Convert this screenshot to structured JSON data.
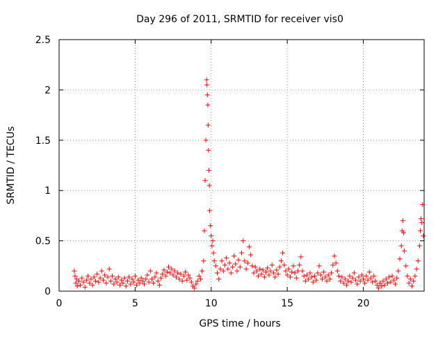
{
  "chart_data": {
    "type": "scatter",
    "title": "Day 296 of 2011, SRMTID for receiver vis0",
    "xlabel": "GPS time / hours",
    "ylabel": "SRMTID / TECUs",
    "xlim": [
      0,
      24
    ],
    "ylim": [
      0,
      2.5
    ],
    "x_ticks": [
      0,
      5,
      10,
      15,
      20
    ],
    "x_tick_labels": [
      "0",
      "5",
      "10",
      "15",
      "20"
    ],
    "y_ticks": [
      0,
      0.5,
      1,
      1.5,
      2,
      2.5
    ],
    "y_tick_labels": [
      "0",
      "0.5",
      "1",
      "1.5",
      "2",
      "2.5"
    ],
    "grid": true,
    "marker": "plus",
    "series": [
      {
        "name": "vis0",
        "color": "#ff0000",
        "points": [
          [
            1.0,
            0.2
          ],
          [
            1.05,
            0.15
          ],
          [
            1.1,
            0.08
          ],
          [
            1.15,
            0.12
          ],
          [
            1.2,
            0.05
          ],
          [
            1.3,
            0.1
          ],
          [
            1.4,
            0.06
          ],
          [
            1.5,
            0.13
          ],
          [
            1.6,
            0.09
          ],
          [
            1.7,
            0.04
          ],
          [
            1.8,
            0.11
          ],
          [
            1.9,
            0.15
          ],
          [
            2.0,
            0.08
          ],
          [
            2.1,
            0.12
          ],
          [
            2.2,
            0.06
          ],
          [
            2.3,
            0.14
          ],
          [
            2.4,
            0.1
          ],
          [
            2.5,
            0.17
          ],
          [
            2.6,
            0.09
          ],
          [
            2.7,
            0.13
          ],
          [
            2.8,
            0.2
          ],
          [
            2.9,
            0.11
          ],
          [
            3.0,
            0.16
          ],
          [
            3.1,
            0.08
          ],
          [
            3.2,
            0.14
          ],
          [
            3.3,
            0.22
          ],
          [
            3.4,
            0.1
          ],
          [
            3.5,
            0.15
          ],
          [
            3.6,
            0.07
          ],
          [
            3.7,
            0.12
          ],
          [
            3.8,
            0.09
          ],
          [
            3.9,
            0.14
          ],
          [
            4.0,
            0.06
          ],
          [
            4.1,
            0.11
          ],
          [
            4.2,
            0.08
          ],
          [
            4.3,
            0.13
          ],
          [
            4.4,
            0.05
          ],
          [
            4.5,
            0.1
          ],
          [
            4.6,
            0.14
          ],
          [
            4.7,
            0.07
          ],
          [
            4.8,
            0.12
          ],
          [
            4.9,
            0.09
          ],
          [
            5.0,
            0.15
          ],
          [
            5.1,
            0.06
          ],
          [
            5.2,
            0.11
          ],
          [
            5.3,
            0.08
          ],
          [
            5.4,
            0.13
          ],
          [
            5.5,
            0.1
          ],
          [
            5.6,
            0.07
          ],
          [
            5.7,
            0.12
          ],
          [
            5.8,
            0.16
          ],
          [
            5.9,
            0.09
          ],
          [
            6.0,
            0.2
          ],
          [
            6.1,
            0.12
          ],
          [
            6.2,
            0.08
          ],
          [
            6.3,
            0.14
          ],
          [
            6.4,
            0.18
          ],
          [
            6.5,
            0.1
          ],
          [
            6.6,
            0.06
          ],
          [
            6.7,
            0.13
          ],
          [
            6.8,
            0.17
          ],
          [
            6.9,
            0.21
          ],
          [
            7.0,
            0.15
          ],
          [
            7.1,
            0.19
          ],
          [
            7.2,
            0.24
          ],
          [
            7.3,
            0.18
          ],
          [
            7.4,
            0.22
          ],
          [
            7.5,
            0.16
          ],
          [
            7.6,
            0.2
          ],
          [
            7.7,
            0.14
          ],
          [
            7.8,
            0.18
          ],
          [
            7.9,
            0.12
          ],
          [
            8.0,
            0.17
          ],
          [
            8.1,
            0.1
          ],
          [
            8.2,
            0.15
          ],
          [
            8.3,
            0.19
          ],
          [
            8.4,
            0.11
          ],
          [
            8.5,
            0.16
          ],
          [
            8.6,
            0.13
          ],
          [
            8.7,
            0.09
          ],
          [
            8.8,
            0.05
          ],
          [
            8.9,
            0.03
          ],
          [
            9.0,
            0.07
          ],
          [
            9.1,
            0.1
          ],
          [
            9.2,
            0.15
          ],
          [
            9.3,
            0.12
          ],
          [
            9.4,
            0.2
          ],
          [
            9.5,
            0.3
          ],
          [
            9.55,
            0.6
          ],
          [
            9.6,
            1.1
          ],
          [
            9.65,
            1.5
          ],
          [
            9.7,
            2.1
          ],
          [
            9.72,
            2.05
          ],
          [
            9.75,
            1.95
          ],
          [
            9.78,
            1.85
          ],
          [
            9.8,
            1.65
          ],
          [
            9.82,
            1.4
          ],
          [
            9.85,
            1.2
          ],
          [
            9.88,
            1.05
          ],
          [
            9.9,
            0.8
          ],
          [
            9.95,
            0.65
          ],
          [
            10.0,
            0.55
          ],
          [
            10.05,
            0.45
          ],
          [
            10.1,
            0.5
          ],
          [
            10.15,
            0.38
          ],
          [
            10.2,
            0.3
          ],
          [
            10.3,
            0.25
          ],
          [
            10.4,
            0.18
          ],
          [
            10.5,
            0.12
          ],
          [
            10.6,
            0.22
          ],
          [
            10.7,
            0.3
          ],
          [
            10.8,
            0.2
          ],
          [
            10.9,
            0.26
          ],
          [
            11.0,
            0.33
          ],
          [
            11.1,
            0.22
          ],
          [
            11.2,
            0.28
          ],
          [
            11.3,
            0.18
          ],
          [
            11.4,
            0.24
          ],
          [
            11.5,
            0.35
          ],
          [
            11.6,
            0.27
          ],
          [
            11.7,
            0.2
          ],
          [
            11.8,
            0.31
          ],
          [
            11.9,
            0.24
          ],
          [
            12.0,
            0.38
          ],
          [
            12.1,
            0.5
          ],
          [
            12.2,
            0.3
          ],
          [
            12.3,
            0.22
          ],
          [
            12.4,
            0.28
          ],
          [
            12.5,
            0.44
          ],
          [
            12.6,
            0.36
          ],
          [
            12.7,
            0.25
          ],
          [
            12.8,
            0.18
          ],
          [
            12.9,
            0.24
          ],
          [
            13.0,
            0.2
          ],
          [
            13.1,
            0.15
          ],
          [
            13.2,
            0.22
          ],
          [
            13.3,
            0.17
          ],
          [
            13.4,
            0.21
          ],
          [
            13.5,
            0.14
          ],
          [
            13.6,
            0.19
          ],
          [
            13.7,
            0.23
          ],
          [
            13.8,
            0.16
          ],
          [
            13.9,
            0.2
          ],
          [
            14.0,
            0.26
          ],
          [
            14.1,
            0.18
          ],
          [
            14.2,
            0.14
          ],
          [
            14.3,
            0.21
          ],
          [
            14.4,
            0.17
          ],
          [
            14.5,
            0.24
          ],
          [
            14.6,
            0.3
          ],
          [
            14.7,
            0.38
          ],
          [
            14.8,
            0.26
          ],
          [
            14.9,
            0.2
          ],
          [
            15.0,
            0.16
          ],
          [
            15.1,
            0.22
          ],
          [
            15.2,
            0.14
          ],
          [
            15.3,
            0.19
          ],
          [
            15.4,
            0.25
          ],
          [
            15.5,
            0.18
          ],
          [
            15.6,
            0.13
          ],
          [
            15.7,
            0.2
          ],
          [
            15.8,
            0.26
          ],
          [
            15.9,
            0.34
          ],
          [
            16.0,
            0.2
          ],
          [
            16.1,
            0.15
          ],
          [
            16.2,
            0.1
          ],
          [
            16.3,
            0.16
          ],
          [
            16.4,
            0.12
          ],
          [
            16.5,
            0.18
          ],
          [
            16.6,
            0.14
          ],
          [
            16.7,
            0.09
          ],
          [
            16.8,
            0.15
          ],
          [
            16.9,
            0.11
          ],
          [
            17.0,
            0.18
          ],
          [
            17.1,
            0.25
          ],
          [
            17.2,
            0.16
          ],
          [
            17.3,
            0.12
          ],
          [
            17.4,
            0.19
          ],
          [
            17.5,
            0.14
          ],
          [
            17.6,
            0.1
          ],
          [
            17.7,
            0.16
          ],
          [
            17.8,
            0.12
          ],
          [
            17.9,
            0.18
          ],
          [
            18.0,
            0.26
          ],
          [
            18.1,
            0.35
          ],
          [
            18.2,
            0.28
          ],
          [
            18.3,
            0.2
          ],
          [
            18.4,
            0.15
          ],
          [
            18.5,
            0.1
          ],
          [
            18.6,
            0.14
          ],
          [
            18.7,
            0.08
          ],
          [
            18.8,
            0.12
          ],
          [
            18.9,
            0.06
          ],
          [
            19.0,
            0.1
          ],
          [
            19.1,
            0.15
          ],
          [
            19.2,
            0.09
          ],
          [
            19.3,
            0.13
          ],
          [
            19.4,
            0.18
          ],
          [
            19.5,
            0.11
          ],
          [
            19.6,
            0.07
          ],
          [
            19.7,
            0.14
          ],
          [
            19.8,
            0.1
          ],
          [
            19.9,
            0.16
          ],
          [
            20.0,
            0.12
          ],
          [
            20.1,
            0.08
          ],
          [
            20.2,
            0.15
          ],
          [
            20.3,
            0.11
          ],
          [
            20.4,
            0.19
          ],
          [
            20.5,
            0.13
          ],
          [
            20.6,
            0.09
          ],
          [
            20.7,
            0.15
          ],
          [
            20.8,
            0.1
          ],
          [
            20.9,
            0.06
          ],
          [
            21.0,
            0.03
          ],
          [
            21.1,
            0.08
          ],
          [
            21.2,
            0.05
          ],
          [
            21.3,
            0.1
          ],
          [
            21.4,
            0.06
          ],
          [
            21.5,
            0.12
          ],
          [
            21.6,
            0.08
          ],
          [
            21.7,
            0.14
          ],
          [
            21.8,
            0.09
          ],
          [
            21.9,
            0.15
          ],
          [
            22.0,
            0.11
          ],
          [
            22.1,
            0.07
          ],
          [
            22.2,
            0.13
          ],
          [
            22.3,
            0.2
          ],
          [
            22.4,
            0.32
          ],
          [
            22.5,
            0.45
          ],
          [
            22.55,
            0.6
          ],
          [
            22.6,
            0.7
          ],
          [
            22.65,
            0.58
          ],
          [
            22.7,
            0.4
          ],
          [
            22.8,
            0.25
          ],
          [
            22.9,
            0.15
          ],
          [
            23.0,
            0.08
          ],
          [
            23.1,
            0.12
          ],
          [
            23.2,
            0.05
          ],
          [
            23.3,
            0.1
          ],
          [
            23.4,
            0.15
          ],
          [
            23.5,
            0.22
          ],
          [
            23.6,
            0.3
          ],
          [
            23.7,
            0.45
          ],
          [
            23.75,
            0.6
          ],
          [
            23.8,
            0.72
          ],
          [
            23.85,
            0.68
          ],
          [
            23.9,
            0.86
          ],
          [
            23.95,
            0.55
          ]
        ]
      }
    ]
  }
}
